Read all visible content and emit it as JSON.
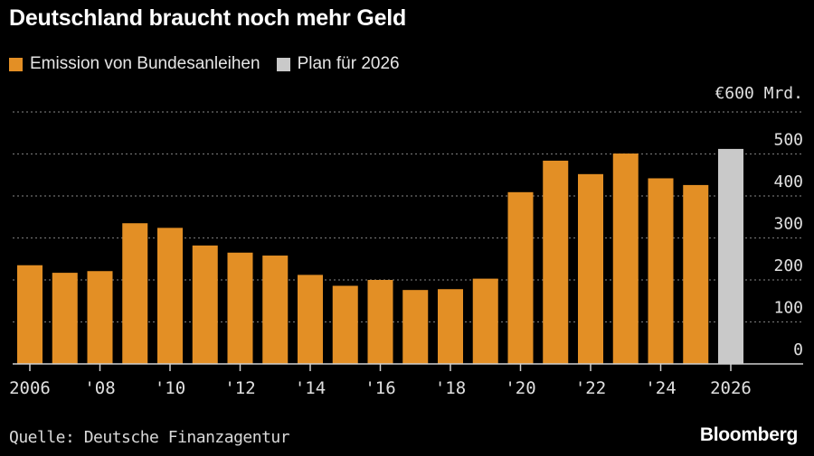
{
  "header": {
    "title": "Deutschland braucht noch mehr Geld"
  },
  "legend": {
    "items": [
      {
        "label": "Emission von Bundesanleihen",
        "color": "#e38f25"
      },
      {
        "label": "Plan für 2026",
        "color": "#c9c9c9"
      }
    ]
  },
  "footer": {
    "source": "Quelle: Deutsche Finanzagentur",
    "brand": "Bloomberg"
  },
  "chart_data": {
    "type": "bar",
    "title": "Deutschland braucht noch mehr Geld",
    "unit_label": "€600 Mrd.",
    "categories": [
      "2006",
      "2007",
      "2008",
      "2009",
      "2010",
      "2011",
      "2012",
      "2013",
      "2014",
      "2015",
      "2016",
      "2017",
      "2018",
      "2019",
      "2020",
      "2021",
      "2022",
      "2023",
      "2024",
      "2025",
      "2026"
    ],
    "series": [
      {
        "name": "Emission von Bundesanleihen",
        "color": "#e38f25",
        "values": [
          235,
          217,
          221,
          335,
          324,
          282,
          265,
          258,
          212,
          186,
          200,
          176,
          178,
          203,
          409,
          484,
          452,
          501,
          442,
          426,
          null
        ]
      },
      {
        "name": "Plan für 2026",
        "color": "#c9c9c9",
        "values": [
          null,
          null,
          null,
          null,
          null,
          null,
          null,
          null,
          null,
          null,
          null,
          null,
          null,
          null,
          null,
          null,
          null,
          null,
          null,
          null,
          512
        ]
      }
    ],
    "ylim": [
      0,
      600
    ],
    "yticks": [
      0,
      100,
      200,
      300,
      400,
      500
    ],
    "ytick_labels": [
      "0",
      "100",
      "200",
      "300",
      "400",
      "500"
    ],
    "xtick_labels": [
      {
        "category": "2006",
        "label": "2006"
      },
      {
        "category": "2008",
        "label": "'08"
      },
      {
        "category": "2010",
        "label": "'10"
      },
      {
        "category": "2012",
        "label": "'12"
      },
      {
        "category": "2014",
        "label": "'14"
      },
      {
        "category": "2016",
        "label": "'16"
      },
      {
        "category": "2018",
        "label": "'18"
      },
      {
        "category": "2020",
        "label": "'20"
      },
      {
        "category": "2022",
        "label": "'22"
      },
      {
        "category": "2024",
        "label": "'24"
      },
      {
        "category": "2026",
        "label": "2026"
      }
    ],
    "grid": true,
    "legend_position": "top-left"
  }
}
